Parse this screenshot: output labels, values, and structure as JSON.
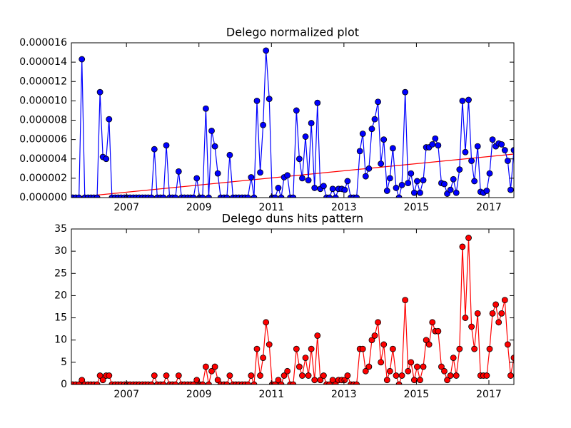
{
  "chart_data": [
    {
      "type": "line",
      "title": "Delego normalized plot",
      "x": [
        2005.52,
        2005.6,
        2005.69,
        2005.77,
        2005.85,
        2005.94,
        2006.02,
        2006.1,
        2006.19,
        2006.27,
        2006.35,
        2006.44,
        2006.52,
        2006.6,
        2006.69,
        2006.77,
        2006.85,
        2006.94,
        2007.02,
        2007.1,
        2007.19,
        2007.27,
        2007.35,
        2007.44,
        2007.52,
        2007.6,
        2007.69,
        2007.77,
        2007.85,
        2007.94,
        2008.02,
        2008.1,
        2008.19,
        2008.27,
        2008.35,
        2008.44,
        2008.52,
        2008.6,
        2008.69,
        2008.77,
        2008.85,
        2008.94,
        2009.02,
        2009.1,
        2009.19,
        2009.27,
        2009.35,
        2009.44,
        2009.52,
        2009.6,
        2009.69,
        2009.77,
        2009.85,
        2009.94,
        2010.02,
        2010.1,
        2010.19,
        2010.27,
        2010.35,
        2010.44,
        2010.52,
        2010.6,
        2010.69,
        2010.77,
        2010.85,
        2010.94,
        2011.02,
        2011.1,
        2011.19,
        2011.27,
        2011.35,
        2011.44,
        2011.52,
        2011.6,
        2011.69,
        2011.77,
        2011.85,
        2011.94,
        2012.02,
        2012.1,
        2012.19,
        2012.27,
        2012.35,
        2012.44,
        2012.52,
        2012.6,
        2012.69,
        2012.77,
        2012.85,
        2012.94,
        2013.02,
        2013.1,
        2013.19,
        2013.27,
        2013.35,
        2013.44,
        2013.52,
        2013.6,
        2013.69,
        2013.77,
        2013.85,
        2013.94,
        2014.02,
        2014.1,
        2014.19,
        2014.27,
        2014.35,
        2014.44,
        2014.52,
        2014.6,
        2014.69,
        2014.77,
        2014.85,
        2014.94,
        2015.02,
        2015.1,
        2015.19,
        2015.27,
        2015.35,
        2015.44,
        2015.52,
        2015.6,
        2015.69,
        2015.77,
        2015.85,
        2015.94,
        2016.02,
        2016.1,
        2016.19,
        2016.27,
        2016.35,
        2016.44,
        2016.52,
        2016.6,
        2016.69,
        2016.77,
        2016.85,
        2016.94,
        2017.02,
        2017.1,
        2017.19,
        2017.27,
        2017.35,
        2017.44,
        2017.52,
        2017.6,
        2017.69
      ],
      "series": [
        {
          "color": "#0000ff",
          "values": [
            0,
            0,
            0,
            1.43e-05,
            0,
            0,
            0,
            0,
            0,
            1.09e-05,
            4.2e-06,
            4e-06,
            8.1e-06,
            0,
            0,
            0,
            0,
            0,
            0,
            0,
            0,
            0,
            0,
            0,
            0,
            0,
            0,
            5e-06,
            0,
            0,
            0,
            5.4e-06,
            0,
            0,
            0,
            2.7e-06,
            0,
            0,
            0,
            0,
            0,
            2e-06,
            0,
            0,
            9.2e-06,
            0,
            6.9e-06,
            5.3e-06,
            2.5e-06,
            0,
            0,
            0,
            4.4e-06,
            0,
            0,
            0,
            0,
            0,
            0,
            2.1e-06,
            0,
            1e-05,
            2.6e-06,
            7.5e-06,
            1.52e-05,
            1.02e-05,
            0,
            0,
            1e-06,
            0,
            2.1e-06,
            2.3e-06,
            0,
            0,
            9e-06,
            4e-06,
            2e-06,
            6.3e-06,
            1.8e-06,
            7.7e-06,
            1e-06,
            9.8e-06,
            9e-07,
            1.2e-06,
            0,
            0,
            9e-07,
            0,
            9e-07,
            9e-07,
            8e-07,
            1.7e-06,
            0,
            0,
            0,
            4.8e-06,
            6.6e-06,
            2.2e-06,
            3e-06,
            7.1e-06,
            8.1e-06,
            9.9e-06,
            3.5e-06,
            6e-06,
            7e-07,
            2e-06,
            5.1e-06,
            1e-06,
            0,
            1.3e-06,
            1.09e-05,
            1.5e-06,
            2.5e-06,
            5e-07,
            1.7e-06,
            5e-07,
            1.8e-06,
            5.2e-06,
            5.2e-06,
            5.5e-06,
            6.1e-06,
            5.4e-06,
            1.5e-06,
            1.4e-06,
            4e-07,
            8e-07,
            1.9e-06,
            5e-07,
            2.9e-06,
            1e-05,
            4.7e-06,
            1.01e-05,
            3.8e-06,
            1.7e-06,
            5.3e-06,
            6e-07,
            5e-07,
            7e-07,
            2.5e-06,
            6e-06,
            5.3e-06,
            5.6e-06,
            5.5e-06,
            4.9e-06,
            3.8e-06,
            8e-07,
            4.9e-06
          ]
        }
      ],
      "trend": {
        "color": "#ff0000",
        "x": [
          2005.48,
          2017.69
        ],
        "values": [
          0,
          4.5e-06
        ]
      },
      "xlim": [
        2005.48,
        2017.69
      ],
      "xticks": [
        2007,
        2009,
        2011,
        2013,
        2015,
        2017
      ],
      "ylim": [
        0,
        1.6e-05
      ],
      "yticks": [
        {
          "value": 0,
          "label": "0.000000"
        },
        {
          "value": 2e-06,
          "label": "0.000002"
        },
        {
          "value": 4e-06,
          "label": "0.000004"
        },
        {
          "value": 6e-06,
          "label": "0.000006"
        },
        {
          "value": 8e-06,
          "label": "0.000008"
        },
        {
          "value": 1e-05,
          "label": "0.000010"
        },
        {
          "value": 1.2e-05,
          "label": "0.000012"
        },
        {
          "value": 1.4e-05,
          "label": "0.000014"
        },
        {
          "value": 1.6e-05,
          "label": "0.000016"
        }
      ]
    },
    {
      "type": "line",
      "title": "Delego duns hits pattern",
      "x": [
        2005.52,
        2005.6,
        2005.69,
        2005.77,
        2005.85,
        2005.94,
        2006.02,
        2006.1,
        2006.19,
        2006.27,
        2006.35,
        2006.44,
        2006.52,
        2006.6,
        2006.69,
        2006.77,
        2006.85,
        2006.94,
        2007.02,
        2007.1,
        2007.19,
        2007.27,
        2007.35,
        2007.44,
        2007.52,
        2007.6,
        2007.69,
        2007.77,
        2007.85,
        2007.94,
        2008.02,
        2008.1,
        2008.19,
        2008.27,
        2008.35,
        2008.44,
        2008.52,
        2008.6,
        2008.69,
        2008.77,
        2008.85,
        2008.94,
        2009.02,
        2009.1,
        2009.19,
        2009.27,
        2009.35,
        2009.44,
        2009.52,
        2009.6,
        2009.69,
        2009.77,
        2009.85,
        2009.94,
        2010.02,
        2010.1,
        2010.19,
        2010.27,
        2010.35,
        2010.44,
        2010.52,
        2010.6,
        2010.69,
        2010.77,
        2010.85,
        2010.94,
        2011.02,
        2011.1,
        2011.19,
        2011.27,
        2011.35,
        2011.44,
        2011.52,
        2011.6,
        2011.69,
        2011.77,
        2011.85,
        2011.94,
        2012.02,
        2012.1,
        2012.19,
        2012.27,
        2012.35,
        2012.44,
        2012.52,
        2012.6,
        2012.69,
        2012.77,
        2012.85,
        2012.94,
        2013.02,
        2013.1,
        2013.19,
        2013.27,
        2013.35,
        2013.44,
        2013.52,
        2013.6,
        2013.69,
        2013.77,
        2013.85,
        2013.94,
        2014.02,
        2014.1,
        2014.19,
        2014.27,
        2014.35,
        2014.44,
        2014.52,
        2014.6,
        2014.69,
        2014.77,
        2014.85,
        2014.94,
        2015.02,
        2015.1,
        2015.19,
        2015.27,
        2015.35,
        2015.44,
        2015.52,
        2015.6,
        2015.69,
        2015.77,
        2015.85,
        2015.94,
        2016.02,
        2016.1,
        2016.19,
        2016.27,
        2016.35,
        2016.44,
        2016.52,
        2016.6,
        2016.69,
        2016.77,
        2016.85,
        2016.94,
        2017.02,
        2017.1,
        2017.19,
        2017.27,
        2017.35,
        2017.44,
        2017.52,
        2017.6,
        2017.69
      ],
      "series": [
        {
          "color": "#ff0000",
          "values": [
            0,
            0,
            0,
            1,
            0,
            0,
            0,
            0,
            0,
            2,
            1,
            2,
            2,
            0,
            0,
            0,
            0,
            0,
            0,
            0,
            0,
            0,
            0,
            0,
            0,
            0,
            0,
            2,
            0,
            0,
            0,
            2,
            0,
            0,
            0,
            2,
            0,
            0,
            0,
            0,
            0,
            1,
            0,
            0,
            4,
            0,
            3,
            4,
            1,
            0,
            0,
            0,
            2,
            0,
            0,
            0,
            0,
            0,
            0,
            2,
            0,
            8,
            2,
            6,
            14,
            9,
            0,
            0,
            1,
            0,
            2,
            3,
            0,
            0,
            8,
            4,
            2,
            6,
            2,
            8,
            1,
            11,
            1,
            2,
            0,
            0,
            1,
            0,
            1,
            1,
            1,
            2,
            0,
            0,
            0,
            8,
            8,
            3,
            4,
            10,
            11,
            14,
            5,
            9,
            1,
            3,
            8,
            2,
            0,
            2,
            19,
            3,
            5,
            1,
            4,
            1,
            4,
            10,
            9,
            14,
            12,
            12,
            4,
            3,
            1,
            2,
            6,
            2,
            8,
            31,
            15,
            33,
            13,
            8,
            16,
            2,
            2,
            2,
            8,
            16,
            18,
            14,
            16,
            19,
            9,
            2,
            6
          ]
        }
      ],
      "xlim": [
        2005.48,
        2017.69
      ],
      "xticks": [
        2007,
        2009,
        2011,
        2013,
        2015,
        2017
      ],
      "ylim": [
        0,
        35
      ],
      "yticks": [
        0,
        5,
        10,
        15,
        20,
        25,
        30,
        35
      ]
    }
  ]
}
